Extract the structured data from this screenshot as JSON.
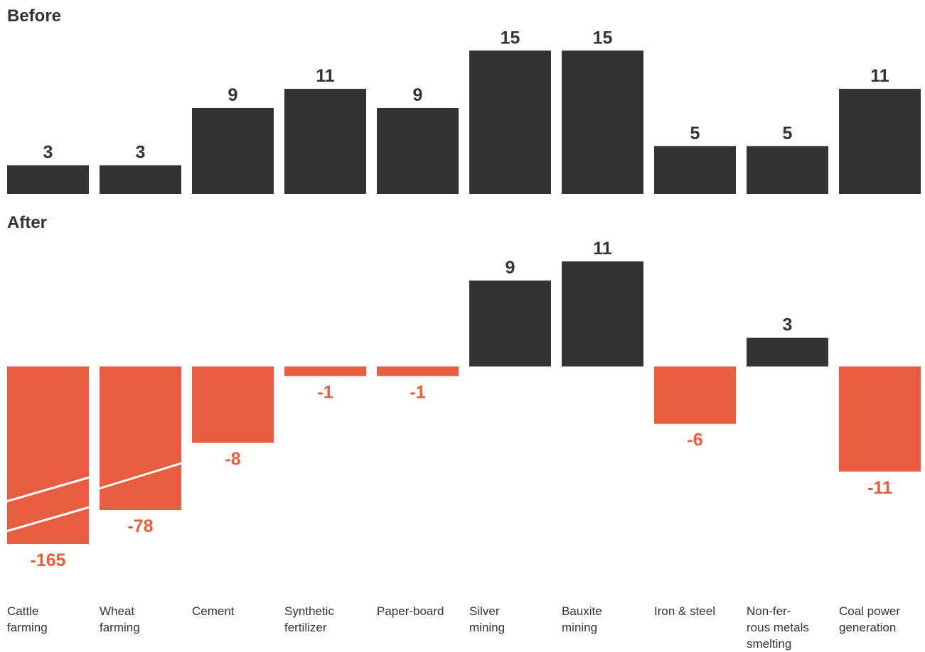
{
  "chart_data": {
    "type": "bar",
    "categories": [
      [
        "Cattle",
        "farming"
      ],
      [
        "Wheat",
        "farming"
      ],
      [
        "Cement"
      ],
      [
        "Synthetic",
        "fertilizer"
      ],
      [
        "Paper-board"
      ],
      [
        "Silver",
        "mining"
      ],
      [
        "Bauxite",
        "mining"
      ],
      [
        "Iron & steel"
      ],
      [
        "Non-fer-",
        "rous metals",
        "smelting"
      ],
      [
        "Coal power",
        "generation"
      ]
    ],
    "panels": [
      {
        "title": "Before",
        "values": [
          3,
          3,
          9,
          11,
          9,
          15,
          15,
          5,
          5,
          11
        ]
      },
      {
        "title": "After",
        "values": [
          -165,
          -78,
          -8,
          -1,
          -1,
          9,
          11,
          -6,
          3,
          -11
        ]
      }
    ],
    "broken_axis_categories": [
      0,
      1
    ],
    "colors": {
      "positive": "#333333",
      "negative": "#e85d3f"
    }
  }
}
